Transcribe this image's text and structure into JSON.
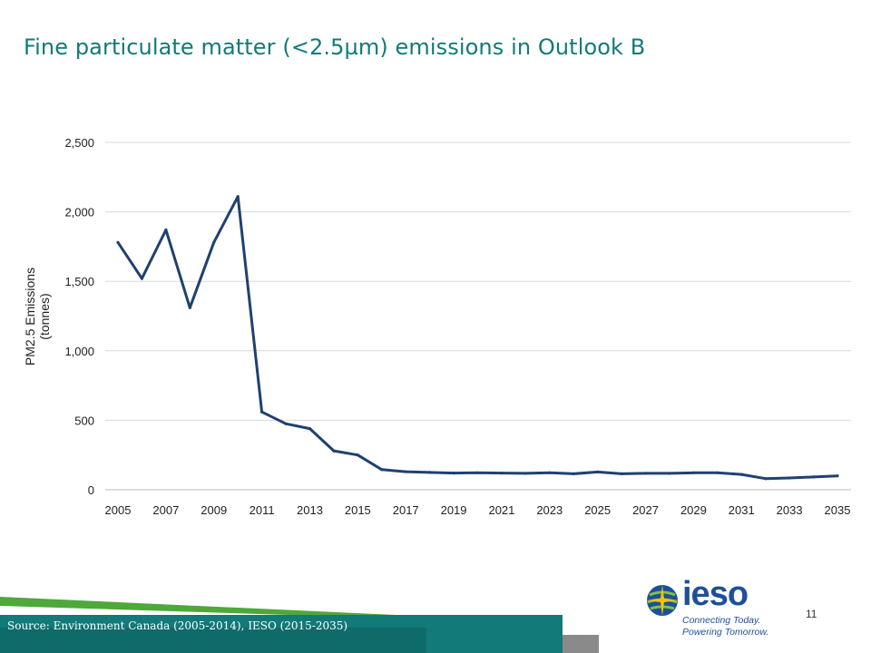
{
  "slide": {
    "title": "Fine particulate matter (<2.5µm) emissions in Outlook B",
    "source": "Source: Environment Canada (2005-2014), IESO (2015-2035)",
    "page_number": "11"
  },
  "logo": {
    "word": "ieso",
    "tagline_1": "Connecting Today.",
    "tagline_2": "Powering Tomorrow.",
    "color": "#1e4f9b"
  },
  "colors": {
    "title": "#127a78",
    "line": "#1f4170",
    "grid": "#d9d9d9",
    "footer_teal": "#127a78",
    "footer_green": "#4ea83a"
  },
  "chart_data": {
    "type": "line",
    "title": "",
    "xlabel": "",
    "ylabel": "PM2.5 Emissions (tonnes)",
    "ylabel_lines": [
      "PM2.5 Emissions",
      "(tonnes)"
    ],
    "ylim": [
      0,
      2500
    ],
    "yticks": [
      0,
      500,
      1000,
      1500,
      2000,
      2500
    ],
    "ytick_labels": [
      "0",
      "500",
      "1,000",
      "1,500",
      "2,000",
      "2,500"
    ],
    "xticks": [
      2005,
      2007,
      2009,
      2011,
      2013,
      2015,
      2017,
      2019,
      2021,
      2023,
      2025,
      2027,
      2029,
      2031,
      2033,
      2035
    ],
    "grid": true,
    "legend": "none",
    "series": [
      {
        "x": [
          2005,
          2006,
          2007,
          2008,
          2009,
          2010,
          2011,
          2012,
          2013,
          2014,
          2015,
          2016,
          2017,
          2018,
          2019,
          2020,
          2021,
          2022,
          2023,
          2024,
          2025,
          2026,
          2027,
          2028,
          2029,
          2030,
          2031,
          2032,
          2033,
          2034,
          2035
        ],
        "values": [
          1780,
          1520,
          1870,
          1310,
          1780,
          2110,
          560,
          475,
          440,
          280,
          250,
          145,
          130,
          125,
          120,
          122,
          120,
          118,
          122,
          115,
          128,
          115,
          118,
          118,
          122,
          122,
          110,
          80,
          85,
          92,
          100
        ]
      }
    ]
  }
}
